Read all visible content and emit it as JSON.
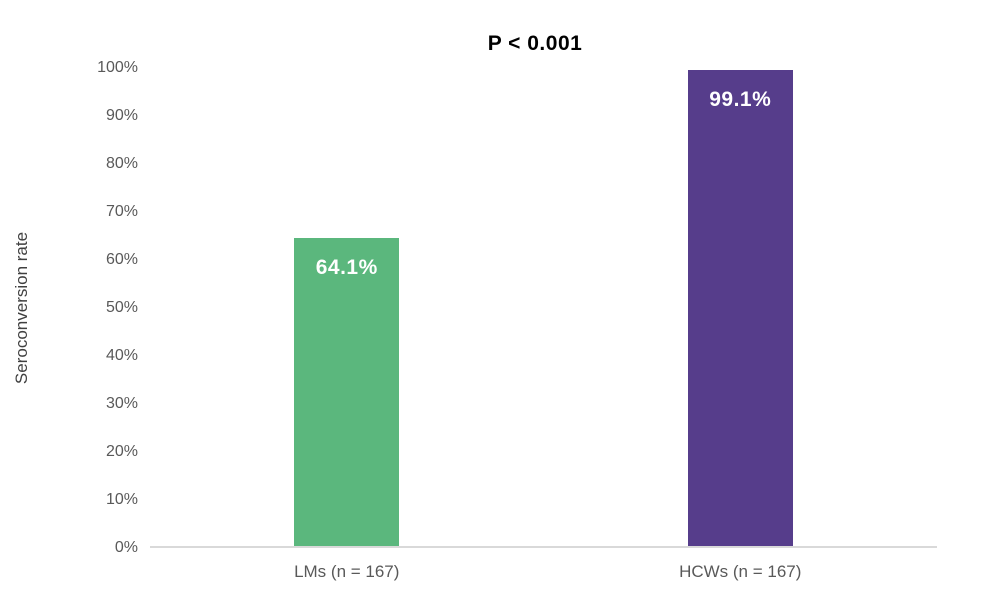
{
  "chart_data": {
    "type": "bar",
    "title": "P < 0.001",
    "xlabel": "",
    "ylabel": "Seroconversion rate",
    "ylim": [
      0,
      100
    ],
    "ytick_step": 10,
    "ytick_labels": [
      "0%",
      "10%",
      "20%",
      "30%",
      "40%",
      "50%",
      "60%",
      "70%",
      "80%",
      "90%",
      "100%"
    ],
    "categories": [
      "LMs (n = 167)",
      "HCWs (n = 167)"
    ],
    "values": [
      64.1,
      99.1
    ],
    "data_labels": [
      "64.1%",
      "99.1%"
    ],
    "bar_colors": [
      "#5bb77d",
      "#563d8b"
    ],
    "grid": false,
    "legend": "none"
  },
  "colors": {
    "background": "#ffffff",
    "axis_line": "#d9d9d9",
    "tick_text": "#595959",
    "category_text": "#595959",
    "axis_title_text": "#404040",
    "title_text": "#000000",
    "bar_label_text": "#ffffff"
  }
}
